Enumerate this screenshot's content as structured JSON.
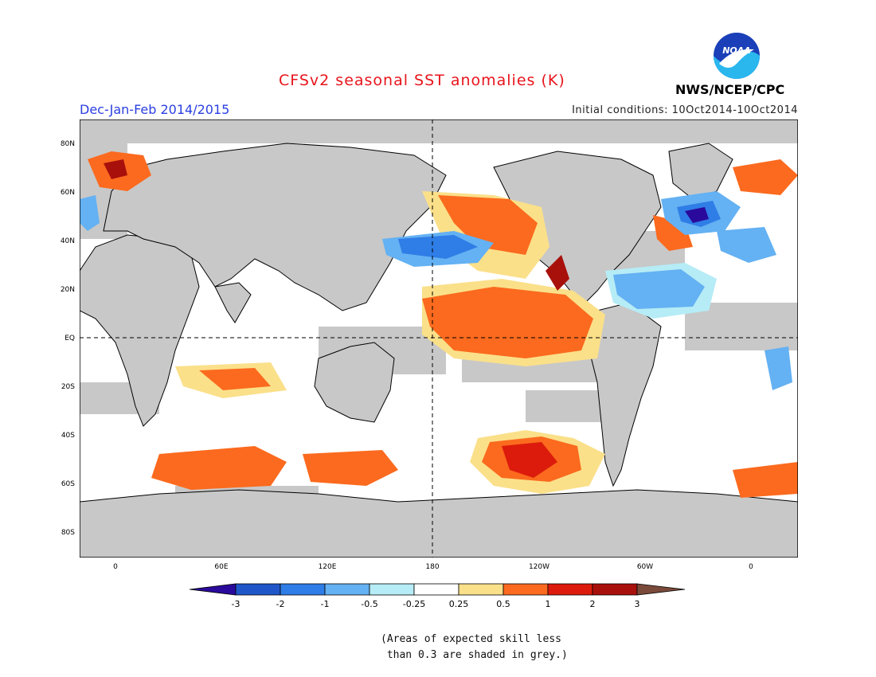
{
  "header": {
    "title": "CFSv2 seasonal SST anomalies (K)",
    "season": "Dec-Jan-Feb 2014/2015",
    "initial_conditions": "Initial conditions: 10Oct2014-10Oct2014",
    "agency": "NWS/NCEP/CPC",
    "logo_text": "NOAA"
  },
  "map": {
    "lat_ticks": [
      "80N",
      "60N",
      "40N",
      "20N",
      "EQ",
      "20S",
      "40S",
      "60S",
      "80S"
    ],
    "lon_ticks": [
      "0",
      "60E",
      "120E",
      "180",
      "120W",
      "60W",
      "0"
    ],
    "missing_color": "#c8c8c8"
  },
  "legend": {
    "levels": [
      "-3",
      "-2",
      "-1",
      "-0.5",
      "-0.25",
      "0.25",
      "0.5",
      "1",
      "2",
      "3"
    ],
    "colors": {
      "lt_-3": "#2a0a9c",
      "-3_-2": "#1f57c8",
      "-2_-1": "#2f7de6",
      "-1_-0.5": "#64b1f3",
      "-0.5_-0.25": "#b6ecf6",
      "-0.25_0.25": "#ffffff",
      "0.25_0.5": "#fbe08a",
      "0.5_1": "#fb6a1e",
      "1_2": "#dc1b0c",
      "2_3": "#a8100c",
      "gt_3": "#7a4a3a"
    }
  },
  "footer": {
    "note_line1": "(Areas of expected skill less",
    "note_line2": " than 0.3 are shaded in grey.)"
  }
}
